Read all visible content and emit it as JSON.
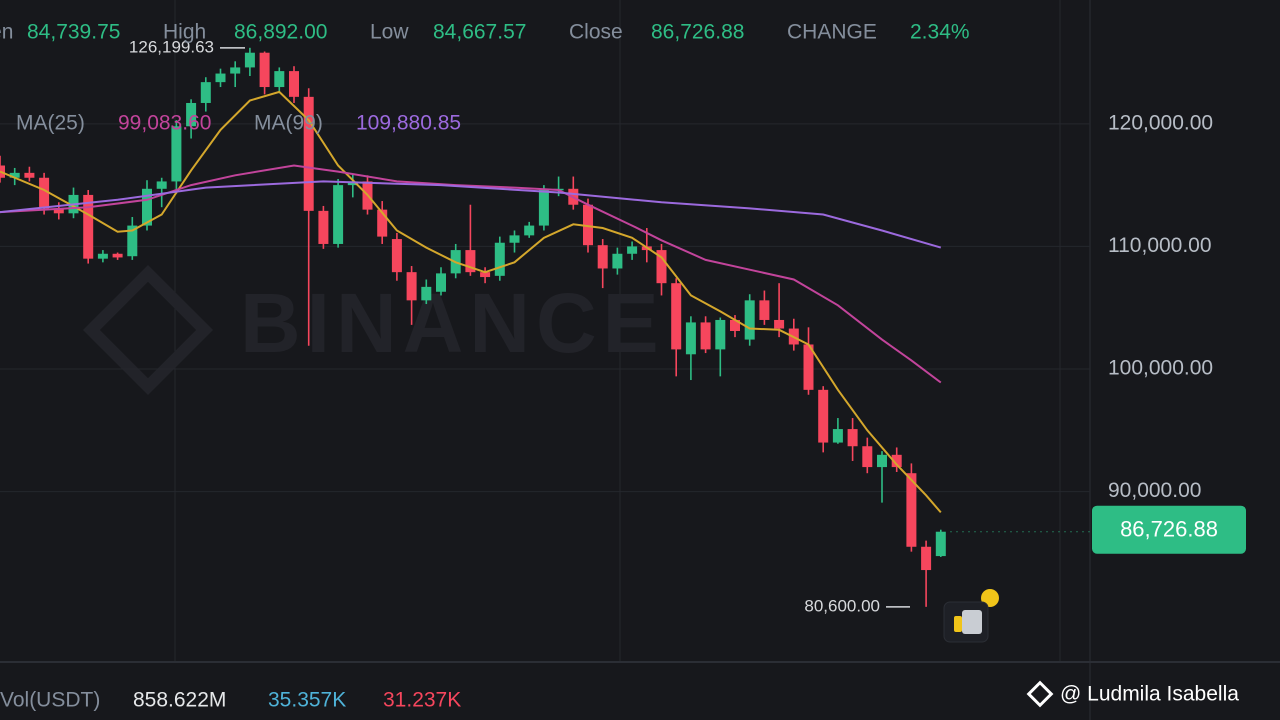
{
  "chart_data": {
    "type": "candlestick",
    "header": [
      {
        "label": "Open",
        "value": "84,739.75"
      },
      {
        "label": "High",
        "value": "86,892.00"
      },
      {
        "label": "Low",
        "value": "84,667.57"
      },
      {
        "label": "Close",
        "value": "86,726.88"
      },
      {
        "label": "CHANGE",
        "value": "2.34%"
      }
    ],
    "ma_legend": [
      {
        "label": "MA(25)",
        "value": "99,083.60",
        "color": "#c2449b"
      },
      {
        "label": "MA(99)",
        "value": "109,880.85",
        "color": "#9c6ade"
      }
    ],
    "volume_legend": {
      "label": "Vol(USDT)",
      "values": [
        "858.622M",
        "35.357K",
        "31.237K"
      ],
      "colors": [
        "#e6e8ea",
        "#4fb3d9",
        "#f6465d"
      ]
    },
    "watermark": "BINANCE",
    "credit": "@ Ludmila Isabella",
    "up_color": "#2ebd85",
    "down_color": "#f6465d",
    "grid": true,
    "ylim": [
      76100,
      130100
    ],
    "yticks": [
      {
        "value": 90000,
        "label": "90,000.00"
      },
      {
        "value": 100000,
        "label": "100,000.00"
      },
      {
        "value": 110000,
        "label": "110,000.00"
      },
      {
        "value": 120000,
        "label": "120,000.00"
      }
    ],
    "last_price": {
      "value": 86726.88,
      "label": "86,726.88"
    },
    "annotations": [
      {
        "value": 126199.63,
        "label": "126,199.63"
      },
      {
        "value": 80600,
        "label": "80,600.00"
      }
    ],
    "categories": [
      null,
      null,
      null,
      null,
      null,
      null,
      null,
      null,
      null,
      null,
      null,
      null,
      null,
      null,
      null,
      null,
      null,
      null,
      null,
      null,
      null,
      null,
      null,
      null,
      null,
      null,
      null,
      null,
      null,
      null,
      null,
      null,
      null,
      null,
      null,
      null,
      null,
      null,
      null,
      null,
      null,
      null,
      null,
      null,
      null,
      null,
      null,
      null,
      null,
      null,
      null,
      null,
      null,
      null,
      null,
      null,
      null,
      null,
      null,
      null,
      null,
      null,
      null,
      null,
      null
    ],
    "open": [
      116600,
      115600,
      116000,
      115600,
      113100,
      112700,
      114200,
      109000,
      109400,
      109200,
      111700,
      114700,
      115300,
      119800,
      121700,
      123400,
      124100,
      124600,
      125800,
      123000,
      124300,
      122200,
      112900,
      110200,
      115000,
      115300,
      113000,
      110600,
      107900,
      105600,
      106300,
      107800,
      109700,
      107900,
      107600,
      110300,
      110900,
      111700,
      114600,
      114700,
      113400,
      110100,
      108200,
      109400,
      110000,
      109700,
      107000,
      101200,
      103800,
      101600,
      104000,
      102400,
      105600,
      104000,
      103300,
      102000,
      98300,
      94000,
      95100,
      93700,
      92000,
      93000,
      91500,
      85500,
      84739.75
    ],
    "high": [
      117400,
      116400,
      116500,
      116000,
      113600,
      114800,
      114600,
      109700,
      109500,
      112400,
      115400,
      115600,
      120300,
      122000,
      123800,
      124500,
      125100,
      126199.63,
      125900,
      124600,
      124700,
      122900,
      113300,
      115500,
      115900,
      115800,
      113700,
      111100,
      108400,
      107300,
      108300,
      110200,
      113400,
      108300,
      110800,
      111300,
      112000,
      115000,
      115700,
      115700,
      113900,
      110600,
      109900,
      110400,
      111500,
      110200,
      107400,
      104300,
      104300,
      104200,
      104400,
      106100,
      106400,
      107000,
      104100,
      103400,
      98600,
      96000,
      96000,
      94400,
      93300,
      93600,
      92300,
      86000,
      86892
    ],
    "low": [
      115200,
      115000,
      115300,
      112600,
      112200,
      112300,
      108600,
      108700,
      108900,
      108900,
      111300,
      113200,
      114300,
      118800,
      121000,
      123000,
      123000,
      123900,
      122400,
      122500,
      121700,
      101900,
      109800,
      109900,
      114000,
      112600,
      110200,
      107200,
      103600,
      105300,
      106000,
      107400,
      107600,
      107000,
      107200,
      109500,
      110700,
      111300,
      114100,
      113000,
      109500,
      106600,
      107700,
      108900,
      108700,
      106000,
      99400,
      99100,
      101300,
      99400,
      102600,
      101900,
      103600,
      102600,
      101500,
      97900,
      93200,
      93900,
      92500,
      91500,
      89100,
      91600,
      85100,
      80600,
      84667.57
    ],
    "close": [
      115600,
      116000,
      115600,
      113100,
      112700,
      114200,
      109000,
      109400,
      109100,
      111700,
      114700,
      115300,
      119800,
      121700,
      123400,
      124100,
      124600,
      125800,
      123000,
      124300,
      122200,
      112900,
      110200,
      115000,
      115300,
      113000,
      110800,
      107900,
      105600,
      106700,
      107800,
      109700,
      107900,
      107500,
      110300,
      110900,
      111700,
      114600,
      114700,
      113400,
      110100,
      108200,
      109400,
      110000,
      109700,
      107000,
      101600,
      103800,
      101600,
      104000,
      103100,
      105600,
      104000,
      103300,
      102000,
      98300,
      94000,
      95100,
      93700,
      92000,
      93000,
      92000,
      85500,
      83600,
      86726.88
    ],
    "ma_series": [
      {
        "color": "#d4a72c",
        "x": [
          0,
          3,
          6,
          8,
          9,
          11,
          13,
          15,
          17,
          19,
          21,
          23,
          25,
          27,
          29,
          31,
          33,
          35,
          37,
          39,
          41,
          43,
          45,
          47,
          49,
          51,
          53,
          55,
          57,
          59,
          61,
          63,
          64
        ],
        "values": [
          116100,
          114600,
          112600,
          111200,
          111300,
          112600,
          116200,
          119500,
          121900,
          122600,
          120300,
          116600,
          114200,
          111300,
          109900,
          108700,
          107900,
          108700,
          110700,
          111800,
          111500,
          110700,
          109100,
          106000,
          104700,
          103300,
          103200,
          102000,
          98300,
          95000,
          92200,
          89700,
          88300
        ]
      },
      {
        "name": "MA(25)",
        "color": "#c2449b",
        "x": [
          0,
          6,
          10,
          13,
          16,
          20,
          23,
          27,
          31,
          35,
          38,
          40,
          43,
          45,
          48,
          51,
          54,
          57,
          60,
          62,
          64
        ],
        "values": [
          112800,
          113200,
          113800,
          115000,
          115800,
          116600,
          116100,
          115300,
          115000,
          114800,
          114600,
          113400,
          111700,
          110500,
          108900,
          108100,
          107300,
          105200,
          102400,
          100700,
          98900
        ]
      },
      {
        "name": "MA(99)",
        "color": "#9c6ade",
        "x": [
          0,
          8,
          14,
          22,
          30,
          38,
          45,
          51,
          56,
          60,
          64
        ],
        "values": [
          112800,
          113800,
          114800,
          115300,
          115000,
          114400,
          113600,
          113100,
          112600,
          111300,
          109900
        ]
      }
    ]
  }
}
